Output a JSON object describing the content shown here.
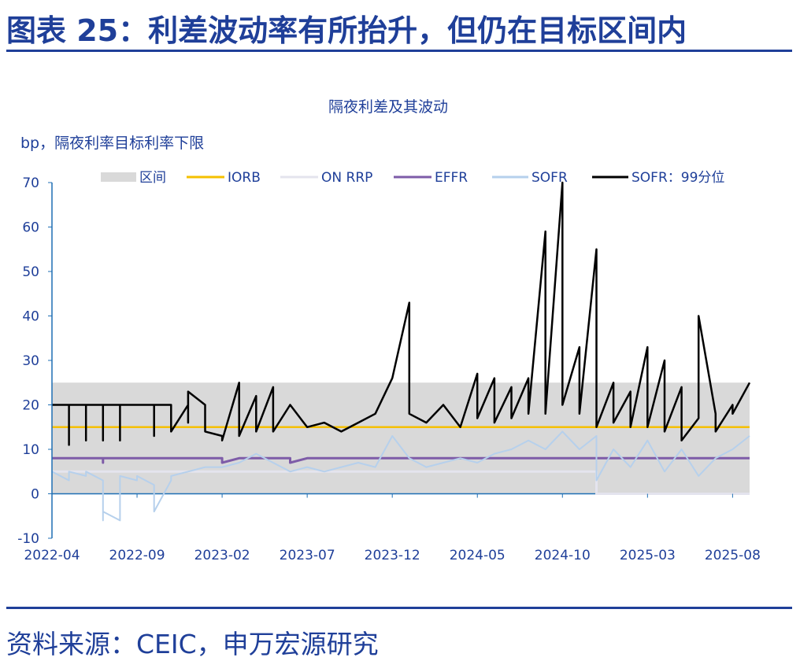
{
  "header": {
    "title": "图表 25：利差波动率有所抬升，但仍在目标区间内"
  },
  "footer": {
    "source": "资料来源：CEIC，申万宏源研究"
  },
  "colors": {
    "text": "#1f3f99",
    "band": "#d9d9d9",
    "iorb": "#f5c000",
    "onrrp": "#e4e4ee",
    "effr": "#7e5ca8",
    "sofr": "#b6d0ec",
    "p99": "#000000",
    "axis": "#1f6fb4"
  },
  "chart_data": {
    "type": "line",
    "title": "隔夜利差及其波动",
    "ylabel": "bp，隔夜利率目标利率下限",
    "ylim": [
      -10,
      70
    ],
    "yticks": [
      -10,
      0,
      10,
      20,
      30,
      40,
      50,
      60,
      70
    ],
    "x_start": "2022-04",
    "x_end": "2025-09",
    "xticks": [
      "2022-04",
      "2022-09",
      "2023-02",
      "2023-07",
      "2023-12",
      "2024-05",
      "2024-10",
      "2025-03",
      "2025-08"
    ],
    "legend": [
      "区间",
      "IORB",
      "ON RRP",
      "EFFR",
      "SOFR",
      "SOFR：99分位"
    ],
    "series": [
      {
        "name": "区间",
        "type": "band",
        "points": [
          [
            "2022-04",
            0,
            25
          ],
          [
            "2024-12",
            0,
            25
          ],
          [
            "2024-12",
            0,
            25
          ],
          [
            "2025-09",
            0,
            25
          ]
        ]
      },
      {
        "name": "IORB",
        "points": [
          [
            "2022-04",
            15
          ],
          [
            "2025-09",
            15
          ]
        ]
      },
      {
        "name": "ON RRP",
        "points": [
          [
            "2022-04",
            5
          ],
          [
            "2024-12",
            5
          ],
          [
            "2024-12",
            0
          ],
          [
            "2025-09",
            0
          ]
        ]
      },
      {
        "name": "EFFR",
        "points": [
          [
            "2022-04",
            8
          ],
          [
            "2022-07",
            8
          ],
          [
            "2022-07",
            7
          ],
          [
            "2022-07",
            8
          ],
          [
            "2023-02",
            8
          ],
          [
            "2023-02",
            7
          ],
          [
            "2023-03",
            8
          ],
          [
            "2023-06",
            8
          ],
          [
            "2023-06",
            7
          ],
          [
            "2023-07",
            8
          ],
          [
            "2025-09",
            8
          ]
        ]
      },
      {
        "name": "SOFR",
        "points": [
          [
            "2022-04",
            5
          ],
          [
            "2022-05",
            3
          ],
          [
            "2022-05",
            5
          ],
          [
            "2022-06",
            4
          ],
          [
            "2022-06",
            5
          ],
          [
            "2022-07",
            3
          ],
          [
            "2022-07",
            -6
          ],
          [
            "2022-07",
            -4
          ],
          [
            "2022-08",
            -6
          ],
          [
            "2022-08",
            4
          ],
          [
            "2022-09",
            3
          ],
          [
            "2022-09",
            4
          ],
          [
            "2022-10",
            2
          ],
          [
            "2022-10",
            -4
          ],
          [
            "2022-11",
            3
          ],
          [
            "2022-11",
            4
          ],
          [
            "2022-12",
            5
          ],
          [
            "2023-01",
            6
          ],
          [
            "2023-02",
            6
          ],
          [
            "2023-03",
            7
          ],
          [
            "2023-04",
            9
          ],
          [
            "2023-05",
            7
          ],
          [
            "2023-06",
            5
          ],
          [
            "2023-07",
            6
          ],
          [
            "2023-08",
            5
          ],
          [
            "2023-09",
            6
          ],
          [
            "2023-10",
            7
          ],
          [
            "2023-11",
            6
          ],
          [
            "2023-12",
            13
          ],
          [
            "2024-01",
            8
          ],
          [
            "2024-02",
            6
          ],
          [
            "2024-03",
            7
          ],
          [
            "2024-04",
            8
          ],
          [
            "2024-05",
            7
          ],
          [
            "2024-06",
            9
          ],
          [
            "2024-07",
            10
          ],
          [
            "2024-08",
            12
          ],
          [
            "2024-09",
            10
          ],
          [
            "2024-10",
            14
          ],
          [
            "2024-11",
            10
          ],
          [
            "2024-12",
            13
          ],
          [
            "2024-12",
            3
          ],
          [
            "2025-01",
            10
          ],
          [
            "2025-02",
            6
          ],
          [
            "2025-03",
            12
          ],
          [
            "2025-04",
            5
          ],
          [
            "2025-05",
            10
          ],
          [
            "2025-06",
            4
          ],
          [
            "2025-07",
            8
          ],
          [
            "2025-08",
            10
          ],
          [
            "2025-09",
            13
          ]
        ]
      },
      {
        "name": "SOFR：99分位",
        "points": [
          [
            "2022-04",
            20
          ],
          [
            "2022-05",
            20
          ],
          [
            "2022-05",
            11
          ],
          [
            "2022-05",
            20
          ],
          [
            "2022-06",
            20
          ],
          [
            "2022-06",
            12
          ],
          [
            "2022-06",
            20
          ],
          [
            "2022-07",
            20
          ],
          [
            "2022-07",
            12
          ],
          [
            "2022-07",
            20
          ],
          [
            "2022-08",
            20
          ],
          [
            "2022-08",
            12
          ],
          [
            "2022-08",
            20
          ],
          [
            "2022-09",
            20
          ],
          [
            "2022-10",
            20
          ],
          [
            "2022-10",
            13
          ],
          [
            "2022-10",
            20
          ],
          [
            "2022-11",
            20
          ],
          [
            "2022-11",
            14
          ],
          [
            "2022-12",
            20
          ],
          [
            "2022-12",
            16
          ],
          [
            "2022-12",
            23
          ],
          [
            "2023-01",
            20
          ],
          [
            "2023-01",
            14
          ],
          [
            "2023-02",
            13
          ],
          [
            "2023-02",
            12
          ],
          [
            "2023-03",
            25
          ],
          [
            "2023-03",
            13
          ],
          [
            "2023-04",
            22
          ],
          [
            "2023-04",
            14
          ],
          [
            "2023-05",
            24
          ],
          [
            "2023-05",
            14
          ],
          [
            "2023-06",
            20
          ],
          [
            "2023-07",
            15
          ],
          [
            "2023-08",
            16
          ],
          [
            "2023-09",
            14
          ],
          [
            "2023-10",
            16
          ],
          [
            "2023-11",
            18
          ],
          [
            "2023-12",
            26
          ],
          [
            "2024-01",
            43
          ],
          [
            "2024-01",
            18
          ],
          [
            "2024-02",
            16
          ],
          [
            "2024-03",
            20
          ],
          [
            "2024-04",
            15
          ],
          [
            "2024-05",
            27
          ],
          [
            "2024-05",
            17
          ],
          [
            "2024-06",
            26
          ],
          [
            "2024-06",
            16
          ],
          [
            "2024-07",
            24
          ],
          [
            "2024-07",
            17
          ],
          [
            "2024-08",
            26
          ],
          [
            "2024-08",
            18
          ],
          [
            "2024-09",
            59
          ],
          [
            "2024-09",
            18
          ],
          [
            "2024-10",
            70
          ],
          [
            "2024-10",
            20
          ],
          [
            "2024-11",
            33
          ],
          [
            "2024-11",
            18
          ],
          [
            "2024-12",
            55
          ],
          [
            "2024-12",
            15
          ],
          [
            "2025-01",
            25
          ],
          [
            "2025-01",
            16
          ],
          [
            "2025-02",
            23
          ],
          [
            "2025-02",
            15
          ],
          [
            "2025-03",
            33
          ],
          [
            "2025-03",
            15
          ],
          [
            "2025-04",
            30
          ],
          [
            "2025-04",
            14
          ],
          [
            "2025-05",
            24
          ],
          [
            "2025-05",
            12
          ],
          [
            "2025-06",
            17
          ],
          [
            "2025-06",
            40
          ],
          [
            "2025-07",
            18
          ],
          [
            "2025-07",
            14
          ],
          [
            "2025-08",
            20
          ],
          [
            "2025-08",
            18
          ],
          [
            "2025-09",
            25
          ]
        ]
      }
    ]
  }
}
